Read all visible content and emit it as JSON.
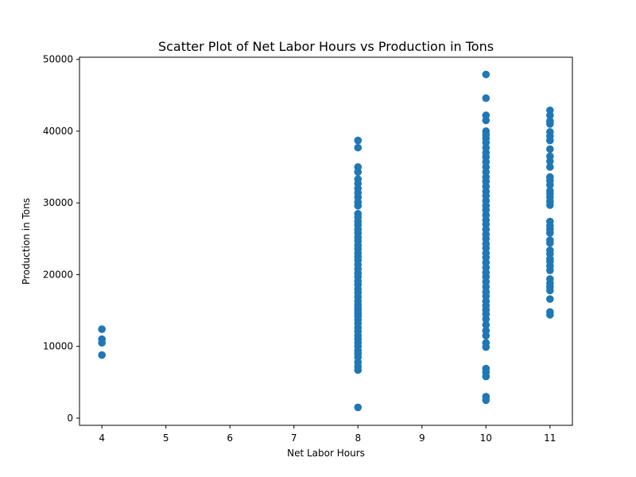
{
  "chart_data": {
    "type": "scatter",
    "title": "Scatter Plot of Net Labor Hours vs Production in Tons",
    "xlabel": "Net Labor Hours",
    "ylabel": "Production in Tons",
    "xlim": [
      3.65,
      11.35
    ],
    "ylim": [
      -1000,
      50300
    ],
    "xticks": [
      4,
      5,
      6,
      7,
      8,
      9,
      10,
      11
    ],
    "yticks": [
      0,
      10000,
      20000,
      30000,
      40000,
      50000
    ],
    "grid": false,
    "color": "#1f77b4",
    "series": [
      {
        "points": [
          [
            4,
            8800
          ],
          [
            4,
            10500
          ],
          [
            4,
            11000
          ],
          [
            4,
            12400
          ],
          [
            8,
            1500
          ],
          [
            8,
            6700
          ],
          [
            8,
            7200
          ],
          [
            8,
            7800
          ],
          [
            8,
            8500
          ],
          [
            8,
            9000
          ],
          [
            8,
            9400
          ],
          [
            8,
            10000
          ],
          [
            8,
            10500
          ],
          [
            8,
            11000
          ],
          [
            8,
            11500
          ],
          [
            8,
            12100
          ],
          [
            8,
            12600
          ],
          [
            8,
            13200
          ],
          [
            8,
            13700
          ],
          [
            8,
            14200
          ],
          [
            8,
            14600
          ],
          [
            8,
            15000
          ],
          [
            8,
            15400
          ],
          [
            8,
            15800
          ],
          [
            8,
            16300
          ],
          [
            8,
            16900
          ],
          [
            8,
            17500
          ],
          [
            8,
            18000
          ],
          [
            8,
            18600
          ],
          [
            8,
            19100
          ],
          [
            8,
            19700
          ],
          [
            8,
            20200
          ],
          [
            8,
            20800
          ],
          [
            8,
            21400
          ],
          [
            8,
            22000
          ],
          [
            8,
            22500
          ],
          [
            8,
            23000
          ],
          [
            8,
            23600
          ],
          [
            8,
            24100
          ],
          [
            8,
            24700
          ],
          [
            8,
            25200
          ],
          [
            8,
            25800
          ],
          [
            8,
            26300
          ],
          [
            8,
            26900
          ],
          [
            8,
            27400
          ],
          [
            8,
            28000
          ],
          [
            8,
            28500
          ],
          [
            8,
            29600
          ],
          [
            8,
            30100
          ],
          [
            8,
            30800
          ],
          [
            8,
            31400
          ],
          [
            8,
            32000
          ],
          [
            8,
            32700
          ],
          [
            8,
            33300
          ],
          [
            8,
            34300
          ],
          [
            8,
            35000
          ],
          [
            8,
            37700
          ],
          [
            8,
            38700
          ],
          [
            10,
            2500
          ],
          [
            10,
            3000
          ],
          [
            10,
            5800
          ],
          [
            10,
            6400
          ],
          [
            10,
            6900
          ],
          [
            10,
            9900
          ],
          [
            10,
            10500
          ],
          [
            10,
            11500
          ],
          [
            10,
            12200
          ],
          [
            10,
            13000
          ],
          [
            10,
            13800
          ],
          [
            10,
            14500
          ],
          [
            10,
            15100
          ],
          [
            10,
            15700
          ],
          [
            10,
            16300
          ],
          [
            10,
            17000
          ],
          [
            10,
            17600
          ],
          [
            10,
            18300
          ],
          [
            10,
            19000
          ],
          [
            10,
            19700
          ],
          [
            10,
            20300
          ],
          [
            10,
            21000
          ],
          [
            10,
            21700
          ],
          [
            10,
            22400
          ],
          [
            10,
            23000
          ],
          [
            10,
            23700
          ],
          [
            10,
            24300
          ],
          [
            10,
            25000
          ],
          [
            10,
            25600
          ],
          [
            10,
            26300
          ],
          [
            10,
            27000
          ],
          [
            10,
            27600
          ],
          [
            10,
            28300
          ],
          [
            10,
            29000
          ],
          [
            10,
            29600
          ],
          [
            10,
            30300
          ],
          [
            10,
            31000
          ],
          [
            10,
            31600
          ],
          [
            10,
            32300
          ],
          [
            10,
            33000
          ],
          [
            10,
            33600
          ],
          [
            10,
            34300
          ],
          [
            10,
            35000
          ],
          [
            10,
            35700
          ],
          [
            10,
            36400
          ],
          [
            10,
            37000
          ],
          [
            10,
            37700
          ],
          [
            10,
            38400
          ],
          [
            10,
            39000
          ],
          [
            10,
            39500
          ],
          [
            10,
            40000
          ],
          [
            10,
            41500
          ],
          [
            10,
            42200
          ],
          [
            10,
            44600
          ],
          [
            10,
            47900
          ],
          [
            11,
            14400
          ],
          [
            11,
            14800
          ],
          [
            11,
            16600
          ],
          [
            11,
            17800
          ],
          [
            11,
            18300
          ],
          [
            11,
            18800
          ],
          [
            11,
            19400
          ],
          [
            11,
            20600
          ],
          [
            11,
            21200
          ],
          [
            11,
            21800
          ],
          [
            11,
            22200
          ],
          [
            11,
            22900
          ],
          [
            11,
            23400
          ],
          [
            11,
            24400
          ],
          [
            11,
            24800
          ],
          [
            11,
            25800
          ],
          [
            11,
            26300
          ],
          [
            11,
            26800
          ],
          [
            11,
            27400
          ],
          [
            11,
            29700
          ],
          [
            11,
            30200
          ],
          [
            11,
            30800
          ],
          [
            11,
            31300
          ],
          [
            11,
            31700
          ],
          [
            11,
            32500
          ],
          [
            11,
            33100
          ],
          [
            11,
            33600
          ],
          [
            11,
            35000
          ],
          [
            11,
            35800
          ],
          [
            11,
            36500
          ],
          [
            11,
            37500
          ],
          [
            11,
            38700
          ],
          [
            11,
            39300
          ],
          [
            11,
            39900
          ],
          [
            11,
            41000
          ],
          [
            11,
            41400
          ],
          [
            11,
            42200
          ],
          [
            11,
            42900
          ]
        ]
      }
    ]
  }
}
